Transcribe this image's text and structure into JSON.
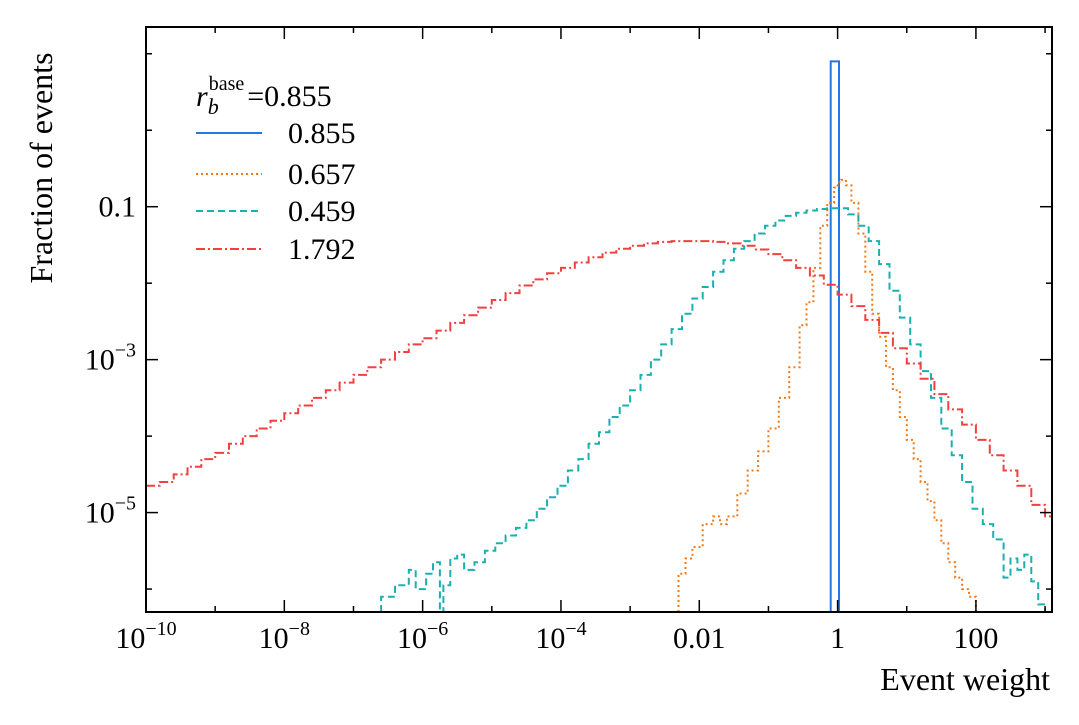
{
  "chart_data": {
    "type": "line",
    "style": "step-histogram",
    "xscale": "log",
    "yscale": "log",
    "xlabel": "Event weight",
    "ylabel": "Fraction of events",
    "xlim_log10": [
      -10,
      3.1
    ],
    "ylim_log10": [
      -6.3,
      1.35
    ],
    "x_ticks": [
      {
        "log10": -10,
        "base": "10",
        "exp": "−10",
        "plain": ""
      },
      {
        "log10": -8,
        "base": "10",
        "exp": "−8",
        "plain": ""
      },
      {
        "log10": -6,
        "base": "10",
        "exp": "−6",
        "plain": ""
      },
      {
        "log10": -4,
        "base": "10",
        "exp": "−4",
        "plain": ""
      },
      {
        "log10": -2,
        "base": "",
        "exp": "",
        "plain": "0.01"
      },
      {
        "log10": 0,
        "base": "",
        "exp": "",
        "plain": "1"
      },
      {
        "log10": 2,
        "base": "",
        "exp": "",
        "plain": "100"
      }
    ],
    "y_ticks": [
      {
        "log10": -1,
        "base": "",
        "exp": "",
        "plain": "0.1"
      },
      {
        "log10": -3,
        "base": "10",
        "exp": "−3",
        "plain": ""
      },
      {
        "log10": -5,
        "base": "10",
        "exp": "−5",
        "plain": ""
      }
    ],
    "legend": {
      "title_var": "r",
      "title_sub": "b",
      "title_sup": "base",
      "title_value": "=0.855",
      "placement": "top-left"
    },
    "series": [
      {
        "name": "0.855",
        "color": "#1f77e8",
        "dash": "solid",
        "points_log10": [
          [
            -0.1,
            -6.3
          ],
          [
            -0.1,
            0.9
          ],
          [
            0.02,
            0.9
          ],
          [
            0.02,
            -6.3
          ]
        ]
      },
      {
        "name": "0.657",
        "color": "#f07a1a",
        "dash": "dotted",
        "points_log10": [
          [
            -2.3,
            -6.3
          ],
          [
            -2.3,
            -5.8
          ],
          [
            -2.2,
            -5.6
          ],
          [
            -2.1,
            -5.45
          ],
          [
            -1.95,
            -5.15
          ],
          [
            -1.8,
            -5.05
          ],
          [
            -1.7,
            -5.15
          ],
          [
            -1.6,
            -5.05
          ],
          [
            -1.45,
            -4.75
          ],
          [
            -1.3,
            -4.45
          ],
          [
            -1.15,
            -4.2
          ],
          [
            -1.0,
            -3.9
          ],
          [
            -0.85,
            -3.5
          ],
          [
            -0.7,
            -3.1
          ],
          [
            -0.55,
            -2.55
          ],
          [
            -0.45,
            -2.25
          ],
          [
            -0.35,
            -1.8
          ],
          [
            -0.25,
            -1.25
          ],
          [
            -0.15,
            -0.95
          ],
          [
            -0.05,
            -0.75
          ],
          [
            0.0,
            -0.68
          ],
          [
            0.05,
            -0.65
          ],
          [
            0.12,
            -0.72
          ],
          [
            0.2,
            -0.95
          ],
          [
            0.3,
            -1.35
          ],
          [
            0.4,
            -1.85
          ],
          [
            0.5,
            -2.4
          ],
          [
            0.6,
            -2.7
          ],
          [
            0.7,
            -3.1
          ],
          [
            0.8,
            -3.4
          ],
          [
            0.9,
            -3.75
          ],
          [
            1.0,
            -4.05
          ],
          [
            1.1,
            -4.3
          ],
          [
            1.2,
            -4.6
          ],
          [
            1.3,
            -4.85
          ],
          [
            1.4,
            -5.1
          ],
          [
            1.5,
            -5.4
          ],
          [
            1.6,
            -5.65
          ],
          [
            1.7,
            -5.85
          ],
          [
            1.8,
            -6.0
          ],
          [
            1.9,
            -6.1
          ],
          [
            2.0,
            -6.3
          ]
        ]
      },
      {
        "name": "0.459",
        "color": "#1ab0b0",
        "dash": "dashed",
        "points_log10": [
          [
            -6.6,
            -6.3
          ],
          [
            -6.6,
            -6.1
          ],
          [
            -6.4,
            -5.95
          ],
          [
            -6.2,
            -5.75
          ],
          [
            -6.1,
            -6.0
          ],
          [
            -5.95,
            -5.8
          ],
          [
            -5.85,
            -5.65
          ],
          [
            -5.75,
            -6.3
          ],
          [
            -5.7,
            -5.95
          ],
          [
            -5.6,
            -5.6
          ],
          [
            -5.5,
            -5.55
          ],
          [
            -5.4,
            -5.75
          ],
          [
            -5.25,
            -5.65
          ],
          [
            -5.1,
            -5.5
          ],
          [
            -4.95,
            -5.4
          ],
          [
            -4.8,
            -5.3
          ],
          [
            -4.65,
            -5.2
          ],
          [
            -4.5,
            -5.1
          ],
          [
            -4.35,
            -4.95
          ],
          [
            -4.2,
            -4.8
          ],
          [
            -4.05,
            -4.65
          ],
          [
            -3.9,
            -4.45
          ],
          [
            -3.75,
            -4.3
          ],
          [
            -3.6,
            -4.1
          ],
          [
            -3.45,
            -3.95
          ],
          [
            -3.3,
            -3.75
          ],
          [
            -3.15,
            -3.6
          ],
          [
            -3.0,
            -3.4
          ],
          [
            -2.85,
            -3.2
          ],
          [
            -2.7,
            -3.0
          ],
          [
            -2.55,
            -2.8
          ],
          [
            -2.4,
            -2.6
          ],
          [
            -2.25,
            -2.4
          ],
          [
            -2.1,
            -2.2
          ],
          [
            -1.95,
            -2.05
          ],
          [
            -1.8,
            -1.85
          ],
          [
            -1.65,
            -1.7
          ],
          [
            -1.5,
            -1.55
          ],
          [
            -1.35,
            -1.45
          ],
          [
            -1.2,
            -1.35
          ],
          [
            -1.05,
            -1.25
          ],
          [
            -0.9,
            -1.18
          ],
          [
            -0.75,
            -1.12
          ],
          [
            -0.6,
            -1.08
          ],
          [
            -0.45,
            -1.05
          ],
          [
            -0.3,
            -1.03
          ],
          [
            -0.15,
            -1.02
          ],
          [
            0.0,
            -1.02
          ],
          [
            0.15,
            -1.1
          ],
          [
            0.3,
            -1.25
          ],
          [
            0.45,
            -1.45
          ],
          [
            0.6,
            -1.75
          ],
          [
            0.75,
            -2.1
          ],
          [
            0.9,
            -2.45
          ],
          [
            1.05,
            -2.8
          ],
          [
            1.2,
            -3.15
          ],
          [
            1.35,
            -3.5
          ],
          [
            1.5,
            -3.9
          ],
          [
            1.65,
            -4.25
          ],
          [
            1.8,
            -4.6
          ],
          [
            1.95,
            -4.95
          ],
          [
            2.1,
            -5.15
          ],
          [
            2.25,
            -5.35
          ],
          [
            2.4,
            -5.85
          ],
          [
            2.5,
            -5.6
          ],
          [
            2.6,
            -5.75
          ],
          [
            2.7,
            -5.55
          ],
          [
            2.8,
            -5.9
          ],
          [
            2.9,
            -6.2
          ],
          [
            3.0,
            -6.3
          ]
        ]
      },
      {
        "name": "1.792",
        "color": "#f04040",
        "dash": "dashdot",
        "points_log10": [
          [
            -10,
            -4.65
          ],
          [
            -9.8,
            -4.6
          ],
          [
            -9.6,
            -4.5
          ],
          [
            -9.4,
            -4.4
          ],
          [
            -9.2,
            -4.3
          ],
          [
            -9.0,
            -4.22
          ],
          [
            -8.8,
            -4.1
          ],
          [
            -8.6,
            -4.0
          ],
          [
            -8.4,
            -3.9
          ],
          [
            -8.2,
            -3.8
          ],
          [
            -8.0,
            -3.7
          ],
          [
            -7.8,
            -3.6
          ],
          [
            -7.6,
            -3.5
          ],
          [
            -7.4,
            -3.4
          ],
          [
            -7.2,
            -3.3
          ],
          [
            -7.0,
            -3.2
          ],
          [
            -6.8,
            -3.1
          ],
          [
            -6.6,
            -3.0
          ],
          [
            -6.4,
            -2.9
          ],
          [
            -6.2,
            -2.8
          ],
          [
            -6.0,
            -2.72
          ],
          [
            -5.8,
            -2.62
          ],
          [
            -5.6,
            -2.52
          ],
          [
            -5.4,
            -2.42
          ],
          [
            -5.2,
            -2.32
          ],
          [
            -5.0,
            -2.22
          ],
          [
            -4.8,
            -2.13
          ],
          [
            -4.6,
            -2.03
          ],
          [
            -4.4,
            -1.95
          ],
          [
            -4.2,
            -1.87
          ],
          [
            -4.0,
            -1.8
          ],
          [
            -3.8,
            -1.73
          ],
          [
            -3.6,
            -1.66
          ],
          [
            -3.4,
            -1.6
          ],
          [
            -3.2,
            -1.55
          ],
          [
            -3.0,
            -1.51
          ],
          [
            -2.8,
            -1.48
          ],
          [
            -2.6,
            -1.46
          ],
          [
            -2.4,
            -1.45
          ],
          [
            -2.2,
            -1.45
          ],
          [
            -2.0,
            -1.45
          ],
          [
            -1.8,
            -1.46
          ],
          [
            -1.6,
            -1.48
          ],
          [
            -1.4,
            -1.51
          ],
          [
            -1.2,
            -1.56
          ],
          [
            -1.0,
            -1.62
          ],
          [
            -0.8,
            -1.7
          ],
          [
            -0.6,
            -1.8
          ],
          [
            -0.4,
            -1.9
          ],
          [
            -0.2,
            -2.02
          ],
          [
            0.0,
            -2.15
          ],
          [
            0.2,
            -2.3
          ],
          [
            0.4,
            -2.48
          ],
          [
            0.6,
            -2.65
          ],
          [
            0.8,
            -2.85
          ],
          [
            1.0,
            -3.05
          ],
          [
            1.2,
            -3.25
          ],
          [
            1.4,
            -3.45
          ],
          [
            1.6,
            -3.65
          ],
          [
            1.8,
            -3.85
          ],
          [
            2.0,
            -4.05
          ],
          [
            2.2,
            -4.25
          ],
          [
            2.4,
            -4.45
          ],
          [
            2.6,
            -4.65
          ],
          [
            2.8,
            -4.9
          ],
          [
            3.0,
            -5.05
          ],
          [
            3.1,
            -5.05
          ]
        ]
      }
    ]
  }
}
